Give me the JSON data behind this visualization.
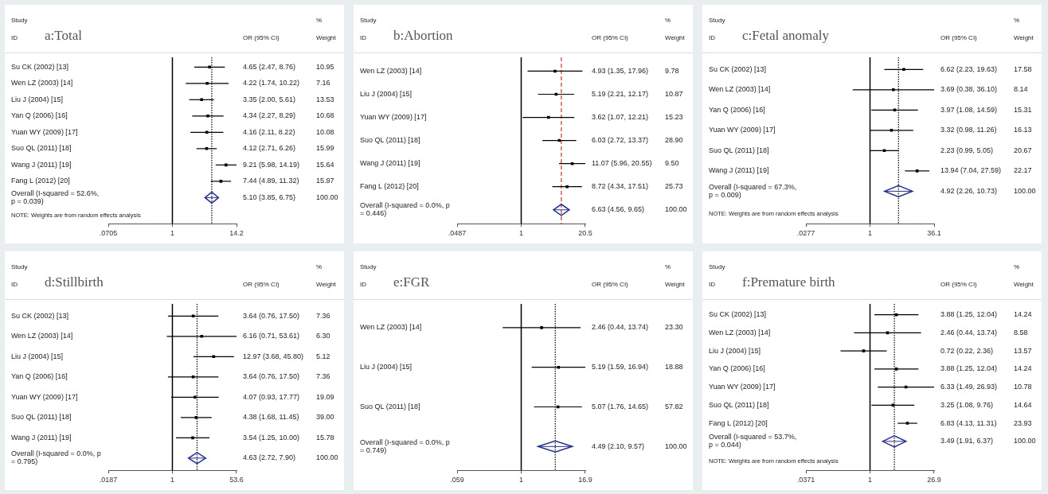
{
  "chart_data": [
    {
      "type": "scatter",
      "title": "a:Total",
      "orientation": "horizontal",
      "log": "x",
      "grid": false,
      "legend": false,
      "categories": [
        "Su CK (2002) [13]",
        "Wen LZ (2003) [14]",
        "Liu J (2004) [15]",
        "Yan Q (2006) [16]",
        "Yuan WY (2009) [17]",
        "Suo QL (2011) [18]",
        "Wang J (2011) [19]",
        "Fang L (2012) [20]",
        "Overall (I-squared = 52.6%, p = 0.039)"
      ],
      "series": [
        {
          "color": "#000000",
          "marker": "square",
          "values": [
            4.65,
            4.22,
            3.35,
            4.34,
            4.16,
            4.12,
            9.21,
            7.44,
            null
          ],
          "errors": [
            [
              2.47,
              8.76
            ],
            [
              1.74,
              10.22
            ],
            [
              2.0,
              5.61
            ],
            [
              2.27,
              8.29
            ],
            [
              2.11,
              8.22
            ],
            [
              2.71,
              6.26
            ],
            [
              5.98,
              14.19
            ],
            [
              4.89,
              11.32
            ],
            null
          ]
        },
        {
          "color": "#26308a",
          "marker": "diamond",
          "values": [
            null,
            null,
            null,
            null,
            null,
            null,
            null,
            null,
            5.1
          ],
          "errors": [
            null,
            null,
            null,
            null,
            null,
            null,
            null,
            null,
            [
              3.85,
              6.75
            ]
          ]
        }
      ],
      "xlim": [
        0.0705,
        14.2
      ],
      "xticks": [
        {
          "value": 0.0705,
          "label": ".0705"
        },
        1,
        14.2
      ],
      "ref_lines": [
        {
          "axis": "x",
          "value": 1,
          "color": "#000000",
          "line_style": "solid"
        },
        {
          "axis": "x",
          "value": 5.1,
          "color": "#000000",
          "line_style": "dotted"
        }
      ],
      "annotations": [
        "Study",
        "ID",
        "OR (95% CI)",
        "%",
        "Weight",
        "4.65 (2.47, 8.76)",
        "10.95",
        "4.22 (1.74, 10.22)",
        "7.16",
        "3.35 (2.00, 5.61)",
        "13.53",
        "4.34 (2.27, 8.29)",
        "10.68",
        "4.16 (2.11, 8.22)",
        "10.08",
        "4.12 (2.71, 6.26)",
        "15.99",
        "9.21 (5.98, 14.19)",
        "15.64",
        "7.44 (4.89, 11.32)",
        "15.97",
        "5.10 (3.85, 6.75)",
        "100.00",
        "NOTE: Weights are from random effects analysis"
      ]
    },
    {
      "type": "scatter",
      "title": "b:Abortion",
      "orientation": "horizontal",
      "log": "x",
      "grid": false,
      "legend": false,
      "categories": [
        "Wen LZ (2003) [14]",
        "Liu J (2004) [15]",
        "Yuan WY (2009) [17]",
        "Suo QL (2011) [18]",
        "Wang J (2011) [19]",
        "Fang L (2012) [20]",
        "Overall (I-squared = 0.0%, p = 0.446)"
      ],
      "series": [
        {
          "color": "#000000",
          "marker": "square",
          "values": [
            4.93,
            5.19,
            3.62,
            6.03,
            11.07,
            8.72,
            null
          ],
          "errors": [
            [
              1.35,
              17.96
            ],
            [
              2.21,
              12.17
            ],
            [
              1.07,
              12.21
            ],
            [
              2.72,
              13.37
            ],
            [
              5.96,
              20.55
            ],
            [
              4.34,
              17.51
            ],
            null
          ]
        },
        {
          "color": "#26308a",
          "marker": "diamond",
          "values": [
            null,
            null,
            null,
            null,
            null,
            null,
            6.63
          ],
          "errors": [
            null,
            null,
            null,
            null,
            null,
            null,
            [
              4.56,
              9.65
            ]
          ]
        }
      ],
      "xlim": [
        0.0487,
        20.55
      ],
      "xticks": [
        {
          "value": 0.0487,
          "label": ".0487"
        },
        1,
        20.5
      ],
      "ref_lines": [
        {
          "axis": "x",
          "value": 1,
          "color": "#000000",
          "line_style": "solid"
        },
        {
          "axis": "x",
          "value": 6.63,
          "color": "#c0392b",
          "line_style": "dashed"
        }
      ],
      "annotations": [
        "Study",
        "ID",
        "OR (95% CI)",
        "%",
        "Weight",
        "4.93 (1.35, 17.96)",
        "9.78",
        "5.19 (2.21, 12.17)",
        "10.87",
        "3.62 (1.07, 12.21)",
        "15.23",
        "6.03 (2.72, 13.37)",
        "28.90",
        "11.07 (5.96, 20.55)",
        "9.50",
        "8.72 (4.34, 17.51)",
        "25.73",
        "6.63 (4.56, 9.65)",
        "100.00"
      ]
    },
    {
      "type": "scatter",
      "title": "c:Fetal anomaly",
      "orientation": "horizontal",
      "log": "x",
      "grid": false,
      "legend": false,
      "categories": [
        "Su CK (2002) [13]",
        "Wen LZ (2003) [14]",
        "Yan Q (2006) [16]",
        "Yuan WY (2009) [17]",
        "Suo QL (2011) [18]",
        "Wang J (2011) [19]",
        "Overall (I-squared = 67.3%, p = 0.009)"
      ],
      "series": [
        {
          "color": "#000000",
          "marker": "square",
          "values": [
            6.62,
            3.69,
            3.97,
            3.32,
            2.23,
            13.94,
            null
          ],
          "errors": [
            [
              2.23,
              19.63
            ],
            [
              0.38,
              36.1
            ],
            [
              1.08,
              14.59
            ],
            [
              0.98,
              11.26
            ],
            [
              0.99,
              5.05
            ],
            [
              7.04,
              27.59
            ],
            null
          ]
        },
        {
          "color": "#26308a",
          "marker": "diamond",
          "values": [
            null,
            null,
            null,
            null,
            null,
            null,
            4.92
          ],
          "errors": [
            null,
            null,
            null,
            null,
            null,
            null,
            [
              2.26,
              10.73
            ]
          ]
        }
      ],
      "xlim": [
        0.0277,
        36.1
      ],
      "xticks": [
        {
          "value": 0.0277,
          "label": ".0277"
        },
        1,
        36.1
      ],
      "ref_lines": [
        {
          "axis": "x",
          "value": 1,
          "color": "#000000",
          "line_style": "solid"
        },
        {
          "axis": "x",
          "value": 4.92,
          "color": "#000000",
          "line_style": "dotted"
        }
      ],
      "annotations": [
        "Study",
        "ID",
        "OR (95% CI)",
        "%",
        "Weight",
        "6.62 (2.23, 19.63)",
        "17.58",
        "3.69 (0.38, 36.10)",
        "8.14",
        "3.97 (1.08, 14.59)",
        "15.31",
        "3.32 (0.98, 11.26)",
        "16.13",
        "2.23 (0.99, 5.05)",
        "20.67",
        "13.94 (7.04, 27.59)",
        "22.17",
        "4.92 (2.26, 10.73)",
        "100.00",
        "NOTE: Weights are from random effects analysis"
      ]
    },
    {
      "type": "scatter",
      "title": "d:Stillbirth",
      "orientation": "horizontal",
      "log": "x",
      "grid": false,
      "legend": false,
      "categories": [
        "Su CK (2002) [13]",
        "Wen LZ (2003) [14]",
        "Liu J (2004) [15]",
        "Yan Q (2006) [16]",
        "Yuan WY (2009) [17]",
        "Suo QL (2011) [18]",
        "Wang J (2011) [19]",
        "Overall (I-squared = 0.0%, p = 0.795)"
      ],
      "series": [
        {
          "color": "#000000",
          "marker": "square",
          "values": [
            3.64,
            6.16,
            12.97,
            3.64,
            4.07,
            4.38,
            3.54,
            null
          ],
          "errors": [
            [
              0.76,
              17.5
            ],
            [
              0.71,
              53.61
            ],
            [
              3.68,
              45.8
            ],
            [
              0.76,
              17.5
            ],
            [
              0.93,
              17.77
            ],
            [
              1.68,
              11.45
            ],
            [
              1.25,
              10.0
            ],
            null
          ]
        },
        {
          "color": "#26308a",
          "marker": "diamond",
          "values": [
            null,
            null,
            null,
            null,
            null,
            null,
            null,
            4.63
          ],
          "errors": [
            null,
            null,
            null,
            null,
            null,
            null,
            null,
            [
              2.72,
              7.9
            ]
          ]
        }
      ],
      "xlim": [
        0.0187,
        53.61
      ],
      "xticks": [
        {
          "value": 0.0187,
          "label": ".0187"
        },
        1,
        53.6
      ],
      "ref_lines": [
        {
          "axis": "x",
          "value": 1,
          "color": "#000000",
          "line_style": "solid"
        },
        {
          "axis": "x",
          "value": 4.63,
          "color": "#000000",
          "line_style": "dotted"
        }
      ],
      "annotations": [
        "Study",
        "ID",
        "OR (95% CI)",
        "%",
        "Weight",
        "3.64 (0.76, 17.50)",
        "7.36",
        "6.16 (0.71, 53.61)",
        "6.30",
        "12.97 (3.68, 45.80)",
        "5.12",
        "3.64 (0.76, 17.50)",
        "7.36",
        "4.07 (0.93, 17.77)",
        "19.09",
        "4.38 (1.68, 11.45)",
        "39.00",
        "3.54 (1.25, 10.00)",
        "15.78",
        "4.63 (2.72, 7.90)",
        "100.00"
      ]
    },
    {
      "type": "scatter",
      "title": "e:FGR",
      "orientation": "horizontal",
      "log": "x",
      "grid": false,
      "legend": false,
      "categories": [
        "Wen LZ (2003) [14]",
        "Liu J (2004) [15]",
        "Suo QL (2011) [18]",
        "Overall (I-squared = 0.0%, p = 0.749)"
      ],
      "series": [
        {
          "color": "#000000",
          "marker": "square",
          "values": [
            2.46,
            5.19,
            5.07,
            null
          ],
          "errors": [
            [
              0.44,
              13.74
            ],
            [
              1.59,
              16.94
            ],
            [
              1.76,
              14.65
            ],
            null
          ]
        },
        {
          "color": "#26308a",
          "marker": "diamond",
          "values": [
            null,
            null,
            null,
            4.49
          ],
          "errors": [
            null,
            null,
            null,
            [
              2.1,
              9.57
            ]
          ]
        }
      ],
      "xlim": [
        0.059,
        16.94
      ],
      "xticks": [
        {
          "value": 0.059,
          "label": ".059"
        },
        1,
        16.9
      ],
      "ref_lines": [
        {
          "axis": "x",
          "value": 1,
          "color": "#000000",
          "line_style": "solid"
        },
        {
          "axis": "x",
          "value": 4.49,
          "color": "#000000",
          "line_style": "dotted"
        }
      ],
      "annotations": [
        "Study",
        "ID",
        "OR (95% CI)",
        "%",
        "Weight",
        "2.46 (0.44, 13.74)",
        "23.30",
        "5.19 (1.59, 16.94)",
        "18.88",
        "5.07 (1.76, 14.65)",
        "57.82",
        "4.49 (2.10, 9.57)",
        "100.00"
      ]
    },
    {
      "type": "scatter",
      "title": "f:Premature birth",
      "orientation": "horizontal",
      "log": "x",
      "grid": false,
      "legend": false,
      "categories": [
        "Su CK (2002) [13]",
        "Wen LZ (2003) [14]",
        "Liu J (2004) [15]",
        "Yan Q (2006) [16]",
        "Yuan WY (2009) [17]",
        "Suo QL (2011) [18]",
        "Fang L (2012) [20]",
        "Overall (I-squared = 53.7%, p = 0.044)"
      ],
      "series": [
        {
          "color": "#000000",
          "marker": "square",
          "values": [
            3.88,
            2.46,
            0.72,
            3.88,
            6.33,
            3.25,
            6.83,
            null
          ],
          "errors": [
            [
              1.25,
              12.04
            ],
            [
              0.44,
              13.74
            ],
            [
              0.22,
              2.36
            ],
            [
              1.25,
              12.04
            ],
            [
              1.49,
              26.93
            ],
            [
              1.08,
              9.76
            ],
            [
              4.13,
              11.31
            ],
            null
          ]
        },
        {
          "color": "#26308a",
          "marker": "diamond",
          "values": [
            null,
            null,
            null,
            null,
            null,
            null,
            null,
            3.49
          ],
          "errors": [
            null,
            null,
            null,
            null,
            null,
            null,
            null,
            [
              1.91,
              6.37
            ]
          ]
        }
      ],
      "xlim": [
        0.0371,
        26.93
      ],
      "xticks": [
        {
          "value": 0.0371,
          "label": ".0371"
        },
        1,
        26.9
      ],
      "ref_lines": [
        {
          "axis": "x",
          "value": 1,
          "color": "#000000",
          "line_style": "solid"
        },
        {
          "axis": "x",
          "value": 3.49,
          "color": "#000000",
          "line_style": "dotted"
        }
      ],
      "annotations": [
        "Study",
        "ID",
        "OR (95% CI)",
        "%",
        "Weight",
        "3.88 (1.25, 12.04)",
        "14.24",
        "2.46 (0.44, 13.74)",
        "8.58",
        "0.72 (0.22, 2.36)",
        "13.57",
        "3.88 (1.25, 12.04)",
        "14.24",
        "6.33 (1.49, 26.93)",
        "10.78",
        "3.25 (1.08, 9.76)",
        "14.64",
        "6.83 (4.13, 11.31)",
        "23.93",
        "3.49 (1.91, 6.37)",
        "100.00",
        "NOTE: Weights are from random effects analysis"
      ]
    }
  ]
}
